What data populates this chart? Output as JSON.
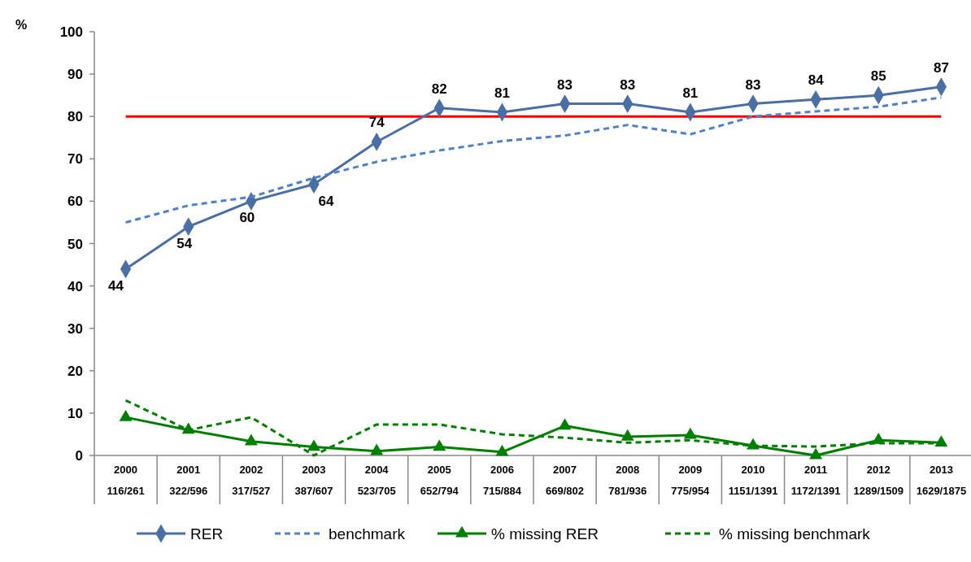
{
  "chart_data": {
    "type": "line",
    "ylabel": "%",
    "categories": [
      "2000\n116/261",
      "2001\n322/596",
      "2002\n317/527",
      "2003\n387/607",
      "2004\n523/705",
      "2005\n652/794",
      "2006\n715/884",
      "2007\n669/802",
      "2008\n781/936",
      "2009\n775/954",
      "2010\n1151/1391",
      "2011\n1172/1391",
      "2012\n1289/1509",
      "2013\n1629/1875"
    ],
    "series": [
      {
        "name": "RER",
        "color": "#4a6fa5",
        "marker": "diamond",
        "line_style": "solid",
        "data_labels": true,
        "values": [
          44,
          54,
          60,
          64,
          74,
          82,
          81,
          83,
          83,
          81,
          83,
          84,
          85,
          87
        ]
      },
      {
        "name": "benchmark",
        "color": "#4f81c7",
        "marker": "none",
        "line_style": "dashed",
        "values": [
          55,
          59,
          61,
          65.5,
          69.3,
          72,
          74.2,
          75.5,
          78,
          75.8,
          80,
          81.2,
          82.3,
          84.5
        ]
      },
      {
        "name": "% missing RER",
        "color": "#008000",
        "marker": "triangle",
        "line_style": "solid",
        "values": [
          9,
          6,
          3.3,
          2,
          1,
          2,
          0.8,
          7,
          4.4,
          4.8,
          2.3,
          0,
          3.6,
          3
        ]
      },
      {
        "name": "% missing benchmark",
        "color": "#008000",
        "marker": "none",
        "line_style": "dashed",
        "values": [
          13,
          6,
          9,
          0,
          7.3,
          7.3,
          5,
          4.2,
          3,
          3.6,
          2.3,
          2.1,
          2.9,
          2.9
        ]
      }
    ],
    "ylim": [
      0,
      100
    ],
    "yticks": [
      0,
      10,
      20,
      30,
      40,
      50,
      60,
      70,
      80,
      90,
      100
    ],
    "ref_lines": [
      {
        "axis": "y",
        "value": 80,
        "color": "#ff0000"
      }
    ],
    "grid": false,
    "legend": "bottom"
  }
}
